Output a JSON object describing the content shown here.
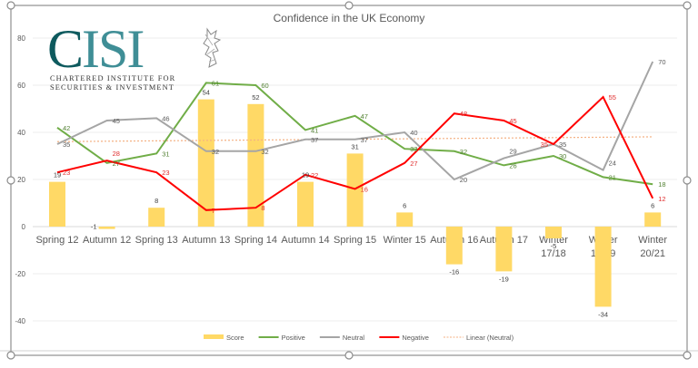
{
  "logo": {
    "text_c": "C",
    "text_isi": "ISI",
    "line1": "CHARTERED INSTITUTE FOR",
    "line2": "SECURITIES & INVESTMENT"
  },
  "chart_data": {
    "type": "bar+line",
    "title": "Confidence in the UK Economy",
    "xlabel": "",
    "ylabel": "",
    "ylim": [
      -40,
      80
    ],
    "yticks": [
      -40,
      -20,
      0,
      20,
      40,
      60,
      80
    ],
    "grid": true,
    "legend_placement": "bottom",
    "categories": [
      "Spring 12",
      "Autumn 12",
      "Spring 13",
      "Autumn 13",
      "Spring 14",
      "Autumn 14",
      "Spring 15",
      "Winter 15",
      "Autumn 16",
      "Autumn 17",
      "Winter 17/18",
      "Winter 18/19",
      "Winter 20/21"
    ],
    "series": [
      {
        "name": "Score",
        "kind": "bar",
        "color": "#ffd966",
        "label_color": "#404040",
        "values": [
          19,
          -1,
          8,
          54,
          52,
          19,
          31,
          6,
          -16,
          -19,
          -5,
          -34,
          6
        ]
      },
      {
        "name": "Positive",
        "kind": "line",
        "color": "#70ad47",
        "label_color": "#548235",
        "values": [
          42,
          27,
          31,
          61,
          60,
          41,
          47,
          33,
          32,
          26,
          30,
          21,
          18
        ]
      },
      {
        "name": "Neutral",
        "kind": "line",
        "color": "#a5a5a5",
        "label_color": "#595959",
        "values": [
          35,
          45,
          46,
          32,
          32,
          37,
          37,
          40,
          20,
          29,
          35,
          24,
          70
        ]
      },
      {
        "name": "Negative",
        "kind": "line",
        "color": "#ff0000",
        "label_color": "#e03030",
        "values": [
          23,
          28,
          23,
          7,
          8,
          22,
          16,
          27,
          48,
          45,
          35,
          55,
          12
        ]
      }
    ],
    "trendline": {
      "name": "Linear (Neutral)",
      "of": "Neutral",
      "type": "linear",
      "color": "#f4b183"
    }
  }
}
